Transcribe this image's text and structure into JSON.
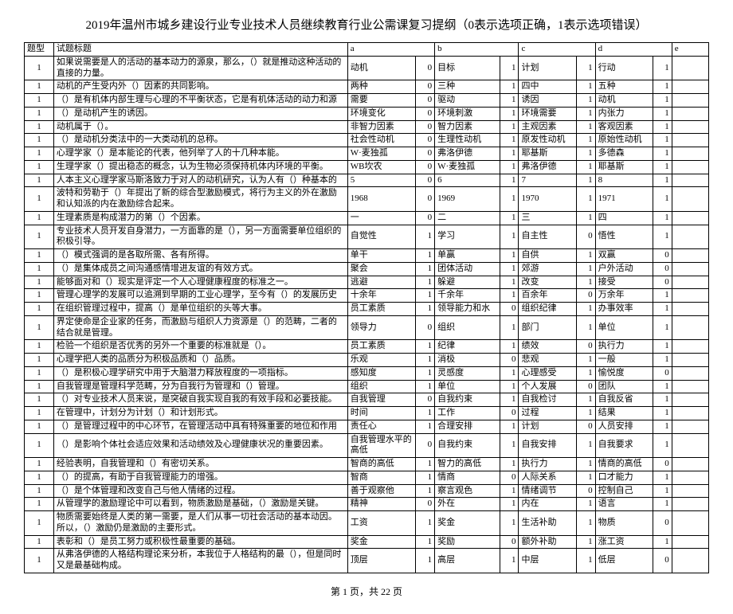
{
  "title": "2019年温州市城乡建设行业专业技术人员继续教育行业公需课复习提纲（0表示选项正确，1表示选项错误）",
  "footer": "第 1 页，共 22 页",
  "header": {
    "type": "题型",
    "qtitle": "试题标题",
    "a": "a",
    "b": "b",
    "c": "c",
    "d": "d",
    "e": "e"
  },
  "rows": [
    {
      "t": "1",
      "q": "如果说需要是人的活动的基本动力的源泉，那么，（）就是推动这种活动的直接的力量。",
      "a": "动机",
      "av": "0",
      "b": "目标",
      "bv": "1",
      "c": "计划",
      "cv": "1",
      "d": "行动",
      "dv": "1"
    },
    {
      "t": "1",
      "q": "动机的产生受内外（）因素的共同影响。",
      "a": "两种",
      "av": "0",
      "b": "三种",
      "bv": "1",
      "c": "四中",
      "cv": "1",
      "d": "五种",
      "dv": "1"
    },
    {
      "t": "1",
      "q": "（）是有机体内部生理与心理的不平衡状态，它是有机体活动的动力和源",
      "a": "需要",
      "av": "0",
      "b": "驱动",
      "bv": "1",
      "c": "诱因",
      "cv": "1",
      "d": "动机",
      "dv": "1"
    },
    {
      "t": "1",
      "q": "（）是动机产生的诱因。",
      "a": "环境变化",
      "av": "0",
      "b": "环境刺激",
      "bv": "1",
      "c": "环境需要",
      "cv": "1",
      "d": "内张力",
      "dv": "1"
    },
    {
      "t": "1",
      "q": "动机属于（）。",
      "a": "非智力因素",
      "av": "0",
      "b": "智力因素",
      "bv": "1",
      "c": "主观因素",
      "cv": "1",
      "d": "客观因素",
      "dv": "1"
    },
    {
      "t": "1",
      "q": "（）是动机分类法中的一大类动机的总称。",
      "a": "社会性动机",
      "av": "0",
      "b": "生理性动机",
      "bv": "1",
      "c": "原发性动机",
      "cv": "1",
      "d": "原始性动机",
      "dv": "1"
    },
    {
      "t": "1",
      "q": "心理学家（）是本能论的代表，他列举了人的十几种本能。",
      "a": "W·麦独孤",
      "av": "0",
      "b": "弗洛伊德",
      "bv": "1",
      "c": "耶基斯",
      "cv": "1",
      "d": "多德森",
      "dv": "1"
    },
    {
      "t": "1",
      "q": "生理学家（）提出稳态的概念，认为生物必须保持机体内环境的平衡。",
      "a": "WB坎农",
      "av": "0",
      "b": "W·麦独孤",
      "bv": "1",
      "c": "弗洛伊德",
      "cv": "1",
      "d": "耶基斯",
      "dv": "1"
    },
    {
      "t": "1",
      "q": "人本主义心理学家马斯洛致力于对人的动机研究，认为人有（）种基本的",
      "a": "5",
      "av": "0",
      "b": "6",
      "bv": "1",
      "c": "7",
      "cv": "1",
      "d": "8",
      "dv": "1"
    },
    {
      "t": "1",
      "q": "波特和劳勒于（）年提出了新的综合型激励模式，将行为主义的外在激励和认知派的内在激励综合起来。",
      "a": "1968",
      "av": "0",
      "b": "1969",
      "bv": "1",
      "c": "1970",
      "cv": "1",
      "d": "1971",
      "dv": "1"
    },
    {
      "t": "1",
      "q": "生理素质是构成潜力的第（）个因素。",
      "a": "一",
      "av": "0",
      "b": "二",
      "bv": "1",
      "c": "三",
      "cv": "1",
      "d": "四",
      "dv": "1"
    },
    {
      "t": "1",
      "q": "专业技术人员开发自身潜力，一方面靠的是（），另一方面需要单位组织的积极引导。",
      "a": "自觉性",
      "av": "1",
      "b": "学习",
      "bv": "1",
      "c": "自主性",
      "cv": "0",
      "d": "悟性",
      "dv": "1"
    },
    {
      "t": "1",
      "q": "（）模式强调的是各取所需、各有所得。",
      "a": "单干",
      "av": "1",
      "b": "单赢",
      "bv": "1",
      "c": "自供",
      "cv": "1",
      "d": "双赢",
      "dv": "0"
    },
    {
      "t": "1",
      "q": "（）是集体成员之间沟通感情增进友谊的有效方式。",
      "a": "聚会",
      "av": "1",
      "b": "团体活动",
      "bv": "1",
      "c": "郊游",
      "cv": "1",
      "d": "户外活动",
      "dv": "0"
    },
    {
      "t": "1",
      "q": "能够面对和（）现实是评定一个人心理健康程度的标准之一。",
      "a": "逃避",
      "av": "1",
      "b": "躲避",
      "bv": "1",
      "c": "改变",
      "cv": "1",
      "d": "接受",
      "dv": "0"
    },
    {
      "t": "1",
      "q": "管理心理学的发展可以追溯到早期的工业心理学，至今有（）的发展历史",
      "a": "十余年",
      "av": "1",
      "b": "千余年",
      "bv": "1",
      "c": "百余年",
      "cv": "0",
      "d": "万余年",
      "dv": "1"
    },
    {
      "t": "1",
      "q": "在组织管理过程中，提高（）是单位组织的头等大事。",
      "a": "员工素质",
      "av": "1",
      "b": "领导能力和水",
      "bv": "0",
      "c": "组织纪律",
      "cv": "1",
      "d": "办事效率",
      "dv": "1"
    },
    {
      "t": "1",
      "q": "界定使命是企业家的任务，而激励与组织人力资源是（）的范畴，二者的结合就是管理。",
      "a": "领导力",
      "av": "0",
      "b": "组织",
      "bv": "1",
      "c": "部门",
      "cv": "1",
      "d": "单位",
      "dv": "1"
    },
    {
      "t": "1",
      "q": "检验一个组织是否优秀的另外一个重要的标准就是（）。",
      "a": "员工素质",
      "av": "1",
      "b": "纪律",
      "bv": "1",
      "c": "绩效",
      "cv": "0",
      "d": "执行力",
      "dv": "1"
    },
    {
      "t": "1",
      "q": "心理学把人类的品质分为积极品质和（）品质。",
      "a": "乐观",
      "av": "1",
      "b": "消极",
      "bv": "0",
      "c": "悲观",
      "cv": "1",
      "d": "一般",
      "dv": "1"
    },
    {
      "t": "1",
      "q": "（）是积极心理学研究中用于大脑潜力释放程度的一项指标。",
      "a": "感知度",
      "av": "1",
      "b": "灵感度",
      "bv": "1",
      "c": "心理感受",
      "cv": "1",
      "d": "愉悦度",
      "dv": "0"
    },
    {
      "t": "1",
      "q": "自我管理是管理科学范畴，分为自我行为管理和（）管理。",
      "a": "组织",
      "av": "1",
      "b": "单位",
      "bv": "1",
      "c": "个人发展",
      "cv": "0",
      "d": "团队",
      "dv": "1"
    },
    {
      "t": "1",
      "q": "（）对专业技术人员来说，是突破自我实现自我的有效手段和必要技能。",
      "a": "自我管理",
      "av": "0",
      "b": "自我约束",
      "bv": "1",
      "c": "自我检讨",
      "cv": "1",
      "d": "自我反省",
      "dv": "1"
    },
    {
      "t": "1",
      "q": "在管理中，计划分为计划（）和计划形式。",
      "a": "时间",
      "av": "1",
      "b": "工作",
      "bv": "0",
      "c": "过程",
      "cv": "1",
      "d": "结果",
      "dv": "1"
    },
    {
      "t": "1",
      "q": "（）是管理过程中的中心环节，在管理活动中具有特殊重要的地位和作用",
      "a": "责任心",
      "av": "1",
      "b": "合理安排",
      "bv": "1",
      "c": "计划",
      "cv": "0",
      "d": "人员安排",
      "dv": "1"
    },
    {
      "t": "1",
      "q": "（）是影响个体社会适应效果和活动绩效及心理健康状况的重要因素。",
      "a": "自我管理水平的高低",
      "av": "0",
      "b": "自我约束",
      "bv": "1",
      "c": "自我安排",
      "cv": "1",
      "d": "自我要求",
      "dv": "1"
    },
    {
      "t": "1",
      "q": "经验表明，自我管理和（）有密切关系。",
      "a": "智商的高低",
      "av": "1",
      "b": "智力的高低",
      "bv": "1",
      "c": "执行力",
      "cv": "1",
      "d": "情商的高低",
      "dv": "0"
    },
    {
      "t": "1",
      "q": "（）的提高，有助于自我管理能力的增强。",
      "a": "智商",
      "av": "1",
      "b": "情商",
      "bv": "0",
      "c": "人际关系",
      "cv": "1",
      "d": "口才能力",
      "dv": "1"
    },
    {
      "t": "1",
      "q": "（）是个体管理和改变自己与他人情绪的过程。",
      "a": "善于观察他",
      "av": "1",
      "b": "察言观色",
      "bv": "1",
      "c": "情绪调节",
      "cv": "0",
      "d": "控制自己",
      "dv": "1"
    },
    {
      "t": "1",
      "q": "从管理学的激励理论中可以看到，物质激励是基础，（）激励是关键。",
      "a": "精神",
      "av": "0",
      "b": "外在",
      "bv": "1",
      "c": "内在",
      "cv": "1",
      "d": "语言",
      "dv": "1"
    },
    {
      "t": "1",
      "q": "物质需要始终是人类的第一需要，是人们从事一切社会活动的基本动因。所以，（）激励仍是激励的主要形式。",
      "a": "工资",
      "av": "1",
      "b": "奖金",
      "bv": "1",
      "c": "生活补助",
      "cv": "1",
      "d": "物质",
      "dv": "0"
    },
    {
      "t": "1",
      "q": "表彰和（）是员工努力或积极性最重要的基础。",
      "a": "奖金",
      "av": "1",
      "b": "奖励",
      "bv": "0",
      "c": "额外补助",
      "cv": "1",
      "d": "涨工资",
      "dv": "1"
    },
    {
      "t": "1",
      "q": "从弗洛伊德的人格结构理论来分析，本我位于人格结构的最（），但是同时又是最基础构成。",
      "a": "顶层",
      "av": "1",
      "b": "高层",
      "bv": "1",
      "c": "中层",
      "cv": "1",
      "d": "低层",
      "dv": "0"
    }
  ]
}
